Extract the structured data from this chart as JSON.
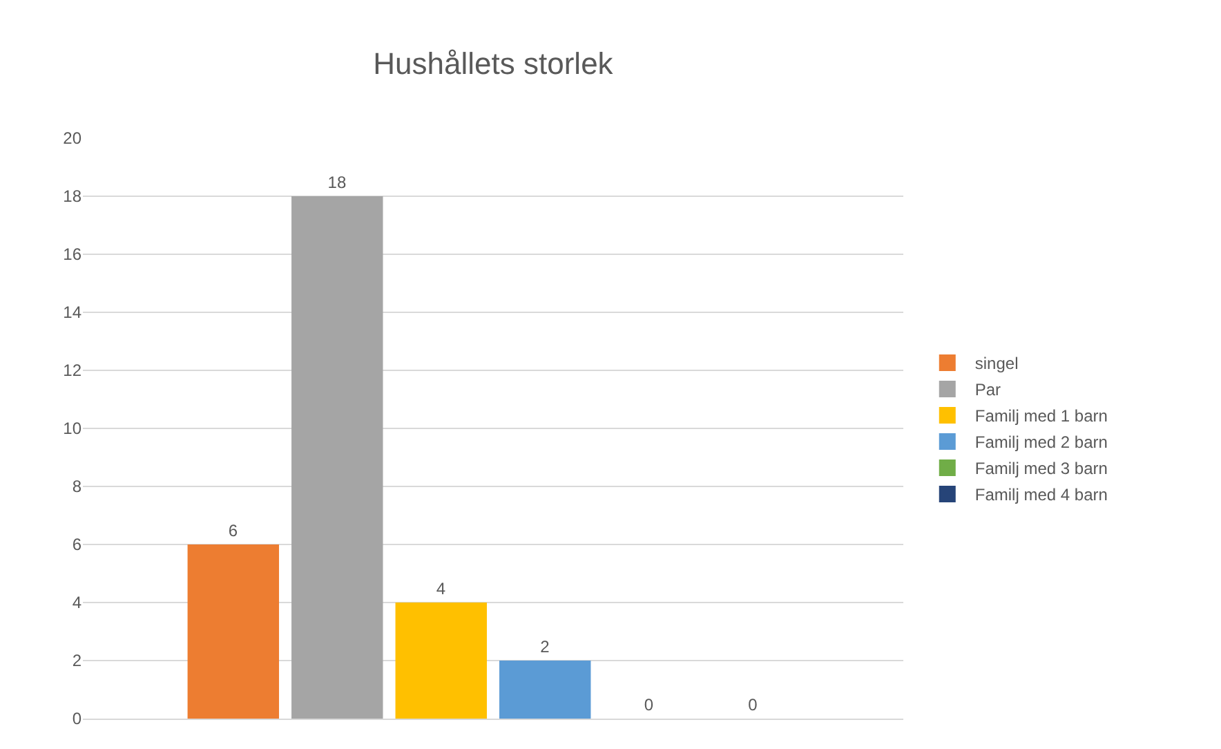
{
  "chart_data": {
    "type": "bar",
    "title": "Hushållets storlek",
    "categories": [
      null
    ],
    "series": [
      {
        "name": "singel",
        "color": "#ed7d31",
        "values": [
          6
        ]
      },
      {
        "name": "Par",
        "color": "#a5a5a5",
        "values": [
          18
        ]
      },
      {
        "name": "Familj med 1 barn",
        "color": "#ffc000",
        "values": [
          4
        ]
      },
      {
        "name": "Familj med 2 barn",
        "color": "#5b9bd5",
        "values": [
          2
        ]
      },
      {
        "name": "Familj med 3 barn",
        "color": "#70ad47",
        "values": [
          0
        ]
      },
      {
        "name": "Familj med 4 barn",
        "color": "#264478",
        "values": [
          0
        ]
      }
    ],
    "ylim": [
      0,
      20
    ],
    "yticks": [
      0,
      2,
      4,
      6,
      8,
      10,
      12,
      14,
      16,
      18,
      20
    ],
    "grid": "y",
    "legend": "right",
    "data_labels": true
  }
}
